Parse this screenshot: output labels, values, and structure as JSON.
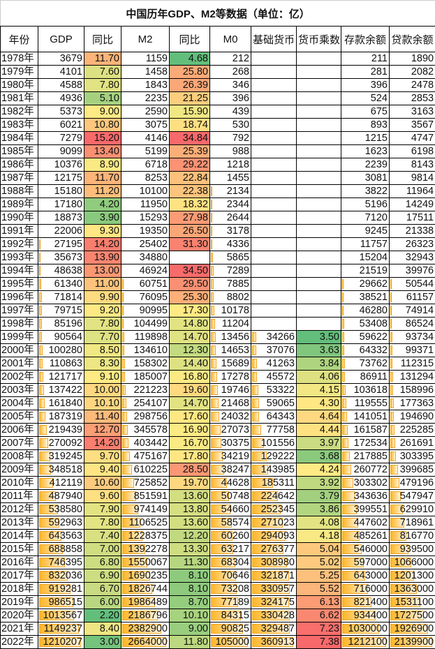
{
  "title": "中国历年GDP、M2等数据（单位：亿）",
  "headers": [
    "年份",
    "GDP",
    "同比",
    "M2",
    "同比",
    "M0",
    "基础货币",
    "货币乘数",
    "存款余额",
    "贷款余额"
  ],
  "colors": {
    "scale_low": "#63BE7B",
    "scale_mid": "#FFEB84",
    "scale_high": "#F8696B",
    "bar": "#FFB628"
  },
  "rows": [
    [
      "1978年",
      "3679",
      "11.70",
      "1159",
      "4.68",
      "212",
      "",
      "",
      "211",
      "1890"
    ],
    [
      "1979年",
      "4101",
      "7.60",
      "1458",
      "25.80",
      "268",
      "",
      "",
      "281",
      "2082"
    ],
    [
      "1980年",
      "4588",
      "7.80",
      "1843",
      "26.39",
      "346",
      "",
      "",
      "396",
      "2478"
    ],
    [
      "1981年",
      "4936",
      "5.10",
      "2235",
      "21.25",
      "396",
      "",
      "",
      "524",
      "2853"
    ],
    [
      "1982年",
      "5373",
      "9.00",
      "2590",
      "15.90",
      "439",
      "",
      "",
      "675",
      "3163"
    ],
    [
      "1983年",
      "6021",
      "10.80",
      "3075",
      "18.74",
      "530",
      "",
      "",
      "893",
      "3567"
    ],
    [
      "1984年",
      "7279",
      "15.20",
      "4146",
      "34.84",
      "792",
      "",
      "",
      "1215",
      "4747"
    ],
    [
      "1985年",
      "9099",
      "13.40",
      "5199",
      "25.39",
      "988",
      "",
      "",
      "1623",
      "6198"
    ],
    [
      "1986年",
      "10376",
      "8.90",
      "6718",
      "29.22",
      "1218",
      "",
      "",
      "2239",
      "8143"
    ],
    [
      "1987年",
      "12175",
      "11.70",
      "8253",
      "22.84",
      "1455",
      "",
      "",
      "3081",
      "9814"
    ],
    [
      "1988年",
      "15180",
      "11.20",
      "10100",
      "22.38",
      "2134",
      "",
      "",
      "3822",
      "11964"
    ],
    [
      "1989年",
      "17180",
      "4.20",
      "11950",
      "18.32",
      "2344",
      "",
      "",
      "5196",
      "14249"
    ],
    [
      "1990年",
      "18873",
      "3.90",
      "15293",
      "27.98",
      "2644",
      "",
      "",
      "7120",
      "17511"
    ],
    [
      "1991年",
      "22006",
      "9.30",
      "19350",
      "26.50",
      "3178",
      "",
      "",
      "9245",
      "21338"
    ],
    [
      "1992年",
      "27195",
      "14.20",
      "25402",
      "31.30",
      "4336",
      "",
      "",
      "11757",
      "26323"
    ],
    [
      "1993年",
      "35673",
      "13.90",
      "34880",
      "",
      "5865",
      "",
      "",
      "15204",
      "32943"
    ],
    [
      "1994年",
      "48638",
      "13.00",
      "46924",
      "34.50",
      "7289",
      "",
      "",
      "21519",
      "39976"
    ],
    [
      "1995年",
      "61340",
      "11.00",
      "60751",
      "29.50",
      "7885",
      "",
      "",
      "29662",
      "50544"
    ],
    [
      "1996年",
      "71814",
      "9.90",
      "76095",
      "25.30",
      "8802",
      "",
      "",
      "38521",
      "61157"
    ],
    [
      "1997年",
      "79715",
      "9.20",
      "90995",
      "17.30",
      "10178",
      "",
      "",
      "46280",
      "74914"
    ],
    [
      "1998年",
      "85196",
      "7.80",
      "104499",
      "14.80",
      "11204",
      "",
      "",
      "53408",
      "86524"
    ],
    [
      "1999年",
      "90564",
      "7.70",
      "119898",
      "14.70",
      "13456",
      "34266",
      "3.50",
      "59622",
      "93734"
    ],
    [
      "2000年",
      "100280",
      "8.50",
      "134610",
      "12.30",
      "14653",
      "37076",
      "3.63",
      "64332",
      "99371"
    ],
    [
      "2001年",
      "110863",
      "8.30",
      "158302",
      "14.40",
      "15689",
      "41263",
      "3.84",
      "73762",
      "112315"
    ],
    [
      "2002年",
      "121717",
      "9.10",
      "185007",
      "16.80",
      "17278",
      "45572",
      "4.06",
      "86911",
      "131294"
    ],
    [
      "2003年",
      "137422",
      "10.00",
      "221223",
      "19.60",
      "19746",
      "53322",
      "4.15",
      "103618",
      "158996"
    ],
    [
      "2004年",
      "161840",
      "10.10",
      "254107",
      "14.70",
      "21468",
      "59065",
      "4.30",
      "119555",
      "177363"
    ],
    [
      "2005年",
      "187319",
      "11.40",
      "298756",
      "17.60",
      "24032",
      "64343",
      "4.64",
      "141051",
      "194690"
    ],
    [
      "2006年",
      "219439",
      "12.70",
      "345578",
      "16.90",
      "27073",
      "77758",
      "4.44",
      "161587",
      "225285"
    ],
    [
      "2007年",
      "270092",
      "14.20",
      "403442",
      "16.70",
      "30375",
      "101556",
      "3.97",
      "172534",
      "261691"
    ],
    [
      "2008年",
      "319245",
      "9.70",
      "475167",
      "17.80",
      "34219",
      "129222",
      "3.68",
      "217885",
      "303395"
    ],
    [
      "2009年",
      "348518",
      "9.40",
      "610225",
      "28.50",
      "38247",
      "143985",
      "4.24",
      "260772",
      "399685"
    ],
    [
      "2010年",
      "412119",
      "10.60",
      "725852",
      "19.70",
      "44628",
      "185311",
      "3.92",
      "303302",
      "479196"
    ],
    [
      "2011年",
      "487940",
      "9.60",
      "851591",
      "13.60",
      "50748",
      "224642",
      "3.79",
      "343636",
      "547947"
    ],
    [
      "2012年",
      "538580",
      "7.90",
      "974149",
      "13.80",
      "54660",
      "252345",
      "3.86",
      "399551",
      "629910"
    ],
    [
      "2013年",
      "592963",
      "7.80",
      "1106525",
      "13.60",
      "58574",
      "271023",
      "4.08",
      "447602",
      "718961"
    ],
    [
      "2014年",
      "643563",
      "7.40",
      "1228375",
      "12.20",
      "60260",
      "294093",
      "4.18",
      "485261",
      "816770"
    ],
    [
      "2015年",
      "688858",
      "7.00",
      "1392278",
      "13.30",
      "63217",
      "276377",
      "5.04",
      "546000",
      "939500"
    ],
    [
      "2016年",
      "746395",
      "6.80",
      "1550067",
      "11.30",
      "68304",
      "308980",
      "5.02",
      "597000",
      "1066000"
    ],
    [
      "2017年",
      "832036",
      "6.90",
      "1690235",
      "8.10",
      "70646",
      "321871",
      "5.25",
      "643000",
      "1201300"
    ],
    [
      "2018年",
      "919281",
      "6.70",
      "1826744",
      "8.10",
      "73208",
      "330957",
      "5.52",
      "716000",
      "1363000"
    ],
    [
      "2019年",
      "986515",
      "6.00",
      "1986489",
      "8.70",
      "77189",
      "324175",
      "6.13",
      "821400",
      "1531100"
    ],
    [
      "2020年",
      "1013567",
      "2.20",
      "2186796",
      "10.10",
      "84315",
      "330428",
      "6.62",
      "934400",
      "1727500"
    ],
    [
      "2021年",
      "1149237",
      "8.40",
      "2382900",
      "9.00",
      "90825",
      "329487",
      "7.23",
      "1030000",
      "1926900"
    ],
    [
      "2022年",
      "1210207",
      "3.00",
      "2664000",
      "11.80",
      "105000",
      "360913",
      "7.38",
      "1212100",
      "2139900"
    ]
  ]
}
